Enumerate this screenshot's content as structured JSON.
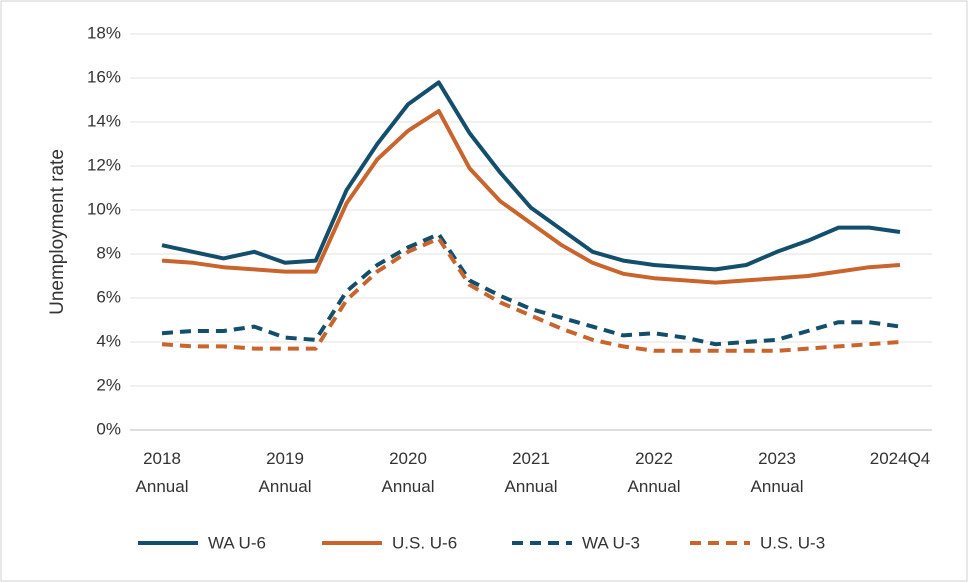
{
  "chart_data": {
    "type": "line",
    "y_label": "Unemployment rate",
    "categories": [
      "2018 Annual",
      null,
      null,
      null,
      "2019 Annual",
      null,
      null,
      null,
      "2020 Annual",
      null,
      null,
      null,
      "2021 Annual",
      null,
      null,
      null,
      "2022 Annual",
      null,
      null,
      null,
      "2023 Annual",
      null,
      null,
      null,
      "2024Q4"
    ],
    "series": [
      {
        "name": "WA U-6",
        "color": "#134f6c",
        "style": "solid",
        "values": [
          8.4,
          8.1,
          7.8,
          8.1,
          7.6,
          7.7,
          10.9,
          13.0,
          14.8,
          15.8,
          13.5,
          11.7,
          10.1,
          9.1,
          8.1,
          7.7,
          7.5,
          7.4,
          7.3,
          7.5,
          8.1,
          8.6,
          9.2,
          9.2,
          9.0
        ]
      },
      {
        "name": "U.S. U-6",
        "color": "#c9642c",
        "style": "solid",
        "values": [
          7.7,
          7.6,
          7.4,
          7.3,
          7.2,
          7.2,
          10.3,
          12.3,
          13.6,
          14.5,
          11.9,
          10.4,
          9.4,
          8.4,
          7.6,
          7.1,
          6.9,
          6.8,
          6.7,
          6.8,
          6.9,
          7.0,
          7.2,
          7.4,
          7.5
        ]
      },
      {
        "name": "WA U-3",
        "color": "#134f6c",
        "style": "dashed",
        "values": [
          4.4,
          4.5,
          4.5,
          4.7,
          4.2,
          4.1,
          6.3,
          7.5,
          8.3,
          8.9,
          6.8,
          6.1,
          5.5,
          5.1,
          4.7,
          4.3,
          4.4,
          4.2,
          3.9,
          4.0,
          4.1,
          4.5,
          4.9,
          4.9,
          4.7
        ]
      },
      {
        "name": "U.S. U-3",
        "color": "#c9642c",
        "style": "dashed",
        "values": [
          3.9,
          3.8,
          3.8,
          3.7,
          3.7,
          3.7,
          5.9,
          7.2,
          8.1,
          8.7,
          6.6,
          5.8,
          5.2,
          4.6,
          4.1,
          3.8,
          3.6,
          3.6,
          3.6,
          3.6,
          3.6,
          3.7,
          3.8,
          3.9,
          4.0
        ]
      }
    ],
    "ylim": [
      0,
      18
    ],
    "yticks": [
      {
        "value": 0,
        "label": "0%"
      },
      {
        "value": 2,
        "label": "2%"
      },
      {
        "value": 4,
        "label": "4%"
      },
      {
        "value": 6,
        "label": "6%"
      },
      {
        "value": 8,
        "label": "8%"
      },
      {
        "value": 10,
        "label": "10%"
      },
      {
        "value": 12,
        "label": "12%"
      },
      {
        "value": 14,
        "label": "14%"
      },
      {
        "value": 16,
        "label": "16%"
      },
      {
        "value": 18,
        "label": "18%"
      }
    ],
    "grid": true,
    "legend": "bottom"
  }
}
